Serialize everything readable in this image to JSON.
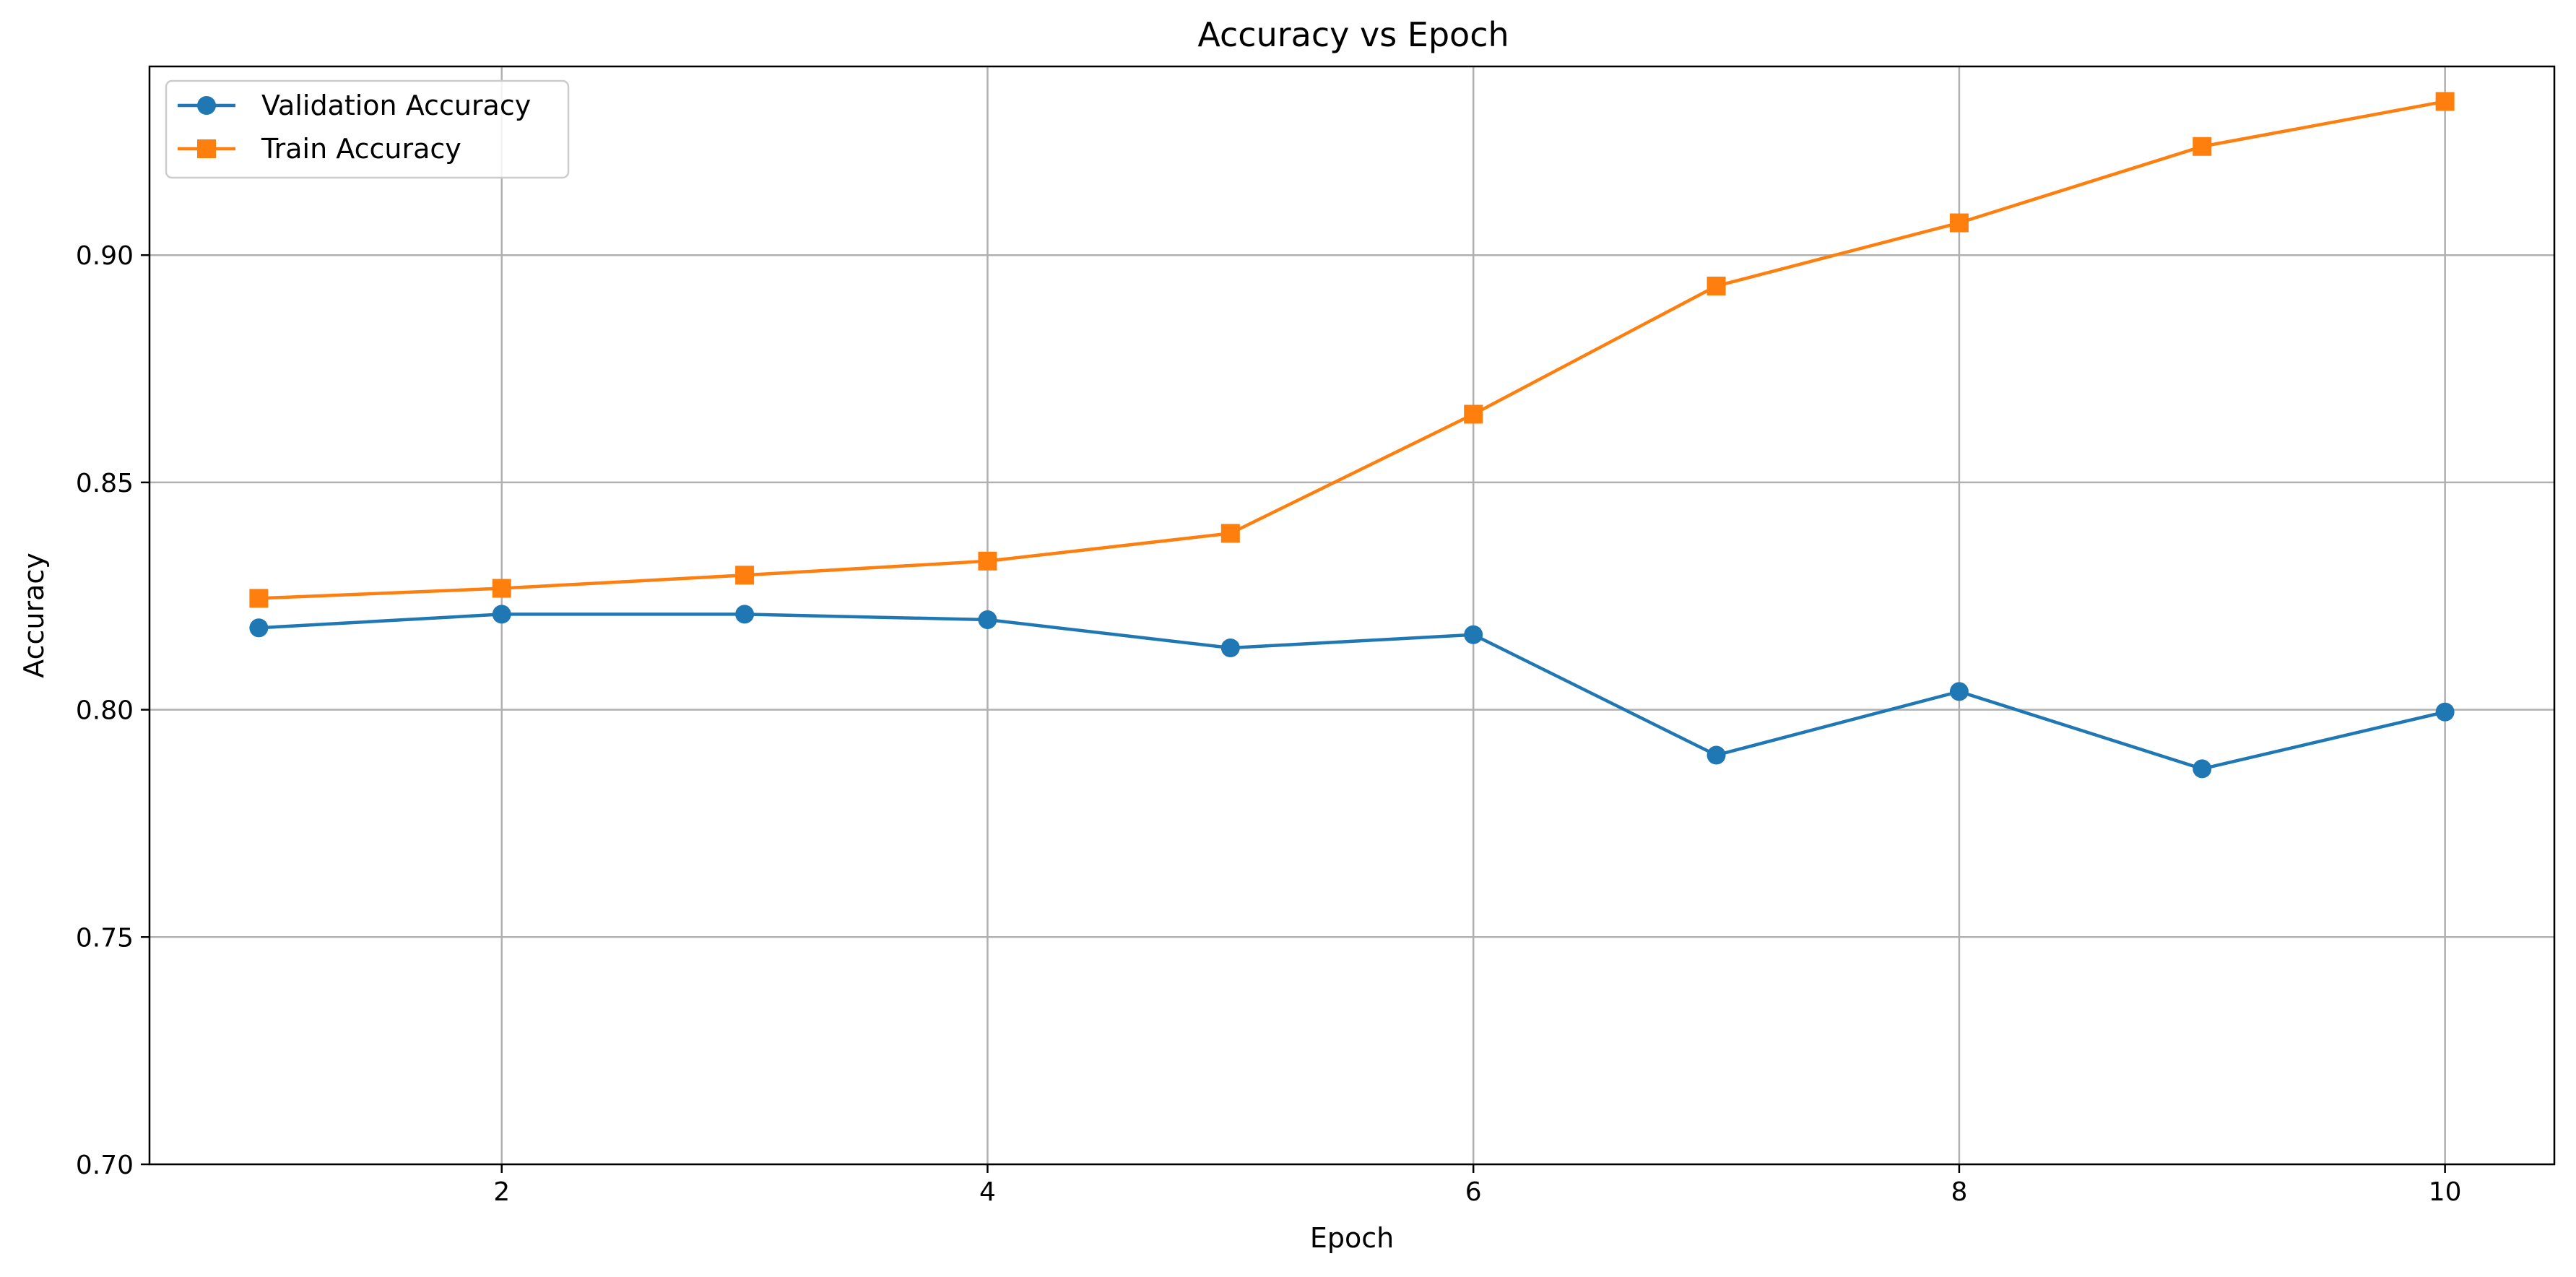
{
  "chart_data": {
    "type": "line",
    "title": "Accuracy vs Epoch",
    "xlabel": "Epoch",
    "ylabel": "Accuracy",
    "xlim": [
      0.55,
      10.45
    ],
    "ylim": [
      0.7,
      0.9415
    ],
    "x": [
      1,
      2,
      3,
      4,
      5,
      6,
      7,
      8,
      9,
      10
    ],
    "xticks": [
      2,
      4,
      6,
      8,
      10
    ],
    "xtick_labels": [
      "2",
      "4",
      "6",
      "8",
      "10"
    ],
    "yticks": [
      0.7,
      0.75,
      0.8,
      0.85,
      0.9
    ],
    "ytick_labels": [
      "0.70",
      "0.75",
      "0.80",
      "0.85",
      "0.90"
    ],
    "grid": true,
    "legend_position": "top-left",
    "series": [
      {
        "name": "Validation Accuracy",
        "color": "#1f77b4",
        "marker": "circle",
        "values": [
          0.818,
          0.821,
          0.821,
          0.8198,
          0.8136,
          0.8165,
          0.79,
          0.804,
          0.787,
          0.7995
        ]
      },
      {
        "name": "Train Accuracy",
        "color": "#ff7f0e",
        "marker": "square",
        "values": [
          0.8245,
          0.8267,
          0.8296,
          0.8327,
          0.8388,
          0.865,
          0.8932,
          0.9071,
          0.9239,
          0.9338
        ]
      }
    ]
  }
}
